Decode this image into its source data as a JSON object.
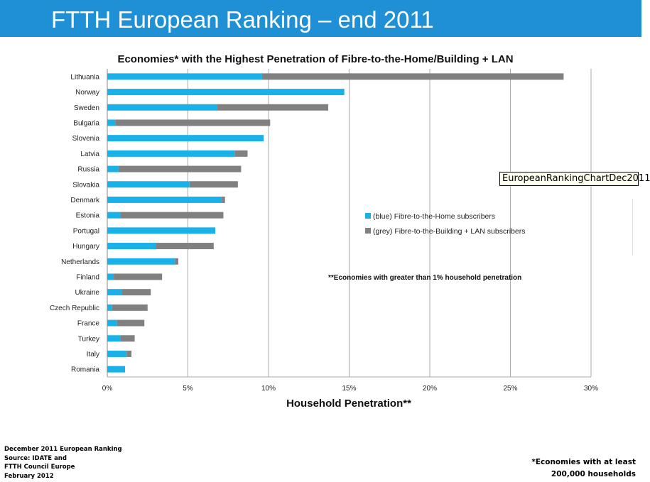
{
  "slide": {
    "title": "FTTH European Ranking – end 2011",
    "tooltip": "EuropeanRankingChartDec2011"
  },
  "colors": {
    "title_bar": "#1f8fd6",
    "ftth": "#19b1e8",
    "fttb": "#808080"
  },
  "chart_data": {
    "type": "bar",
    "orientation": "horizontal",
    "stacked": true,
    "title": "Economies* with the Highest Penetration of Fibre-to-the-Home/Building + LAN",
    "xlabel": "Household Penetration**",
    "ylabel": "",
    "xlim": [
      0,
      30
    ],
    "xticks": [
      "0%",
      "5%",
      "10%",
      "15%",
      "20%",
      "25%",
      "30%"
    ],
    "grid": "vertical",
    "categories": [
      "Lithuania",
      "Norway",
      "Sweden",
      "Bulgaria",
      "Slovenia",
      "Latvia",
      "Russia",
      "Slovakia",
      "Denmark",
      "Estonia",
      "Portugal",
      "Hungary",
      "Netherlands",
      "Finland",
      "Ukraine",
      "Czech Republic",
      "France",
      "Turkey",
      "Italy",
      "Romania"
    ],
    "series": [
      {
        "name": "(blue) Fibre-to-the-Home subscribers",
        "values": [
          9.6,
          14.7,
          6.8,
          0.5,
          9.7,
          7.9,
          0.7,
          5.1,
          7.1,
          0.8,
          6.7,
          3.0,
          4.2,
          0.4,
          0.9,
          0.3,
          0.6,
          0.8,
          1.2,
          1.1
        ]
      },
      {
        "name": "(grey) Fibre-to-the-Building + LAN subscribers",
        "values": [
          18.7,
          0.0,
          6.9,
          9.6,
          0.0,
          0.8,
          7.6,
          3.0,
          0.2,
          6.4,
          0.0,
          3.6,
          0.2,
          3.0,
          1.8,
          2.2,
          1.7,
          0.9,
          0.3,
          0.0
        ]
      }
    ],
    "annotation": "**Economies with greater than 1% household penetration"
  },
  "footer": {
    "source_lines": [
      "December 2011 European Ranking",
      "Source: IDATE and",
      "FTTH Council Europe",
      "February 2012"
    ],
    "note_lines": [
      "*Economies with at least",
      "200,000 households"
    ]
  }
}
